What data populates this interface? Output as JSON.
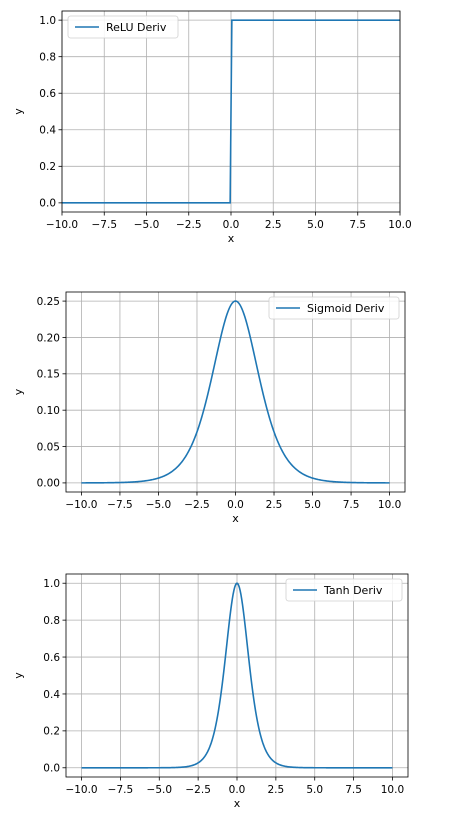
{
  "chart_data": [
    {
      "type": "line",
      "xlabel": "x",
      "ylabel": "y",
      "xlim": [
        -10,
        10
      ],
      "ylim": [
        -0.05,
        1.05
      ],
      "xticks": [
        -10,
        -7.5,
        -5,
        -2.5,
        0,
        2.5,
        5,
        7.5,
        10
      ],
      "xtick_labels": [
        "−10.0",
        "−7.5",
        "−5.0",
        "−2.5",
        "0.0",
        "2.5",
        "5.0",
        "7.5",
        "10.0"
      ],
      "yticks": [
        0,
        0.2,
        0.4,
        0.6,
        0.8,
        1.0
      ],
      "ytick_labels": [
        "0.0",
        "0.2",
        "0.4",
        "0.6",
        "0.8",
        "1.0"
      ],
      "grid": true,
      "legend_position": "top-left",
      "color": "#1f77b4",
      "series": [
        {
          "name": "ReLU Deriv",
          "function": "relu_deriv",
          "x": [
            -10,
            -0.05,
            0.05,
            10
          ],
          "y": [
            0,
            0,
            1,
            1
          ]
        }
      ]
    },
    {
      "type": "line",
      "xlabel": "x",
      "ylabel": "y",
      "xlim": [
        -11,
        11
      ],
      "ylim": [
        -0.0125,
        0.2625
      ],
      "xticks": [
        -10,
        -7.5,
        -5,
        -2.5,
        0,
        2.5,
        5,
        7.5,
        10
      ],
      "xtick_labels": [
        "−10.0",
        "−7.5",
        "−5.0",
        "−2.5",
        "0.0",
        "2.5",
        "5.0",
        "7.5",
        "10.0"
      ],
      "yticks": [
        0,
        0.05,
        0.1,
        0.15,
        0.2,
        0.25
      ],
      "ytick_labels": [
        "0.00",
        "0.05",
        "0.10",
        "0.15",
        "0.20",
        "0.25"
      ],
      "grid": true,
      "legend_position": "top-right",
      "color": "#1f77b4",
      "series": [
        {
          "name": "Sigmoid Deriv",
          "function": "sigmoid_deriv",
          "x_range": [
            -10,
            10
          ],
          "peak": {
            "x": 0,
            "y": 0.25
          }
        }
      ]
    },
    {
      "type": "line",
      "xlabel": "x",
      "ylabel": "y",
      "xlim": [
        -11,
        11
      ],
      "ylim": [
        -0.05,
        1.05
      ],
      "xticks": [
        -10,
        -7.5,
        -5,
        -2.5,
        0,
        2.5,
        5,
        7.5,
        10
      ],
      "xtick_labels": [
        "−10.0",
        "−7.5",
        "−5.0",
        "−2.5",
        "0.0",
        "2.5",
        "5.0",
        "7.5",
        "10.0"
      ],
      "yticks": [
        0,
        0.2,
        0.4,
        0.6,
        0.8,
        1.0
      ],
      "ytick_labels": [
        "0.0",
        "0.2",
        "0.4",
        "0.6",
        "0.8",
        "1.0"
      ],
      "grid": true,
      "legend_position": "top-right",
      "color": "#1f77b4",
      "series": [
        {
          "name": "Tanh Deriv",
          "function": "tanh_deriv",
          "x_range": [
            -10,
            10
          ],
          "peak": {
            "x": 0,
            "y": 1.0
          }
        }
      ]
    }
  ]
}
